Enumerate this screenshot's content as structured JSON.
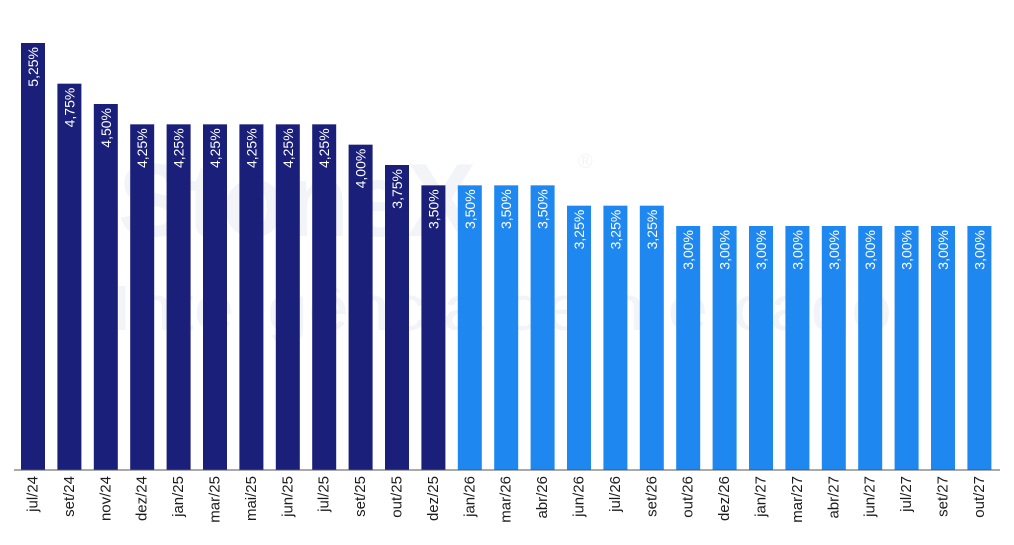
{
  "watermark": {
    "brand": "StoneX",
    "registered": "®",
    "tagline": "Inteligência de mercado"
  },
  "colors": {
    "realized": "#1a1f7a",
    "projected": "#1e88f0",
    "axis": "#555555"
  },
  "chart_data": {
    "type": "bar",
    "title": "",
    "xlabel": "",
    "ylabel": "",
    "ylim": [
      0,
      5.25
    ],
    "grid": false,
    "legend": "none",
    "categories": [
      "jul/24",
      "set/24",
      "nov/24",
      "dez/24",
      "jan/25",
      "mar/25",
      "mai/25",
      "jun/25",
      "jul/25",
      "set/25",
      "out/25",
      "dez/25",
      "jan/26",
      "mar/26",
      "abr/26",
      "jun/26",
      "jul/26",
      "set/26",
      "out/26",
      "dez/26",
      "jan/27",
      "mar/27",
      "abr/27",
      "jun/27",
      "jul/27",
      "set/27",
      "out/27"
    ],
    "values": [
      5.25,
      4.75,
      4.5,
      4.25,
      4.25,
      4.25,
      4.25,
      4.25,
      4.25,
      4.0,
      3.75,
      3.5,
      3.5,
      3.5,
      3.5,
      3.25,
      3.25,
      3.25,
      3.0,
      3.0,
      3.0,
      3.0,
      3.0,
      3.0,
      3.0,
      3.0,
      3.0
    ],
    "data_labels": [
      "5,25%",
      "4,75%",
      "4,50%",
      "4,25%",
      "4,25%",
      "4,25%",
      "4,25%",
      "4,25%",
      "4,25%",
      "4,00%",
      "3,75%",
      "3,50%",
      "3,50%",
      "3,50%",
      "3,50%",
      "3,25%",
      "3,25%",
      "3,25%",
      "3,00%",
      "3,00%",
      "3,00%",
      "3,00%",
      "3,00%",
      "3,00%",
      "3,00%",
      "3,00%",
      "3,00%"
    ],
    "series_type": [
      "realized",
      "realized",
      "realized",
      "realized",
      "realized",
      "realized",
      "realized",
      "realized",
      "realized",
      "realized",
      "realized",
      "realized",
      "projected",
      "projected",
      "projected",
      "projected",
      "projected",
      "projected",
      "projected",
      "projected",
      "projected",
      "projected",
      "projected",
      "projected",
      "projected",
      "projected",
      "projected"
    ]
  }
}
